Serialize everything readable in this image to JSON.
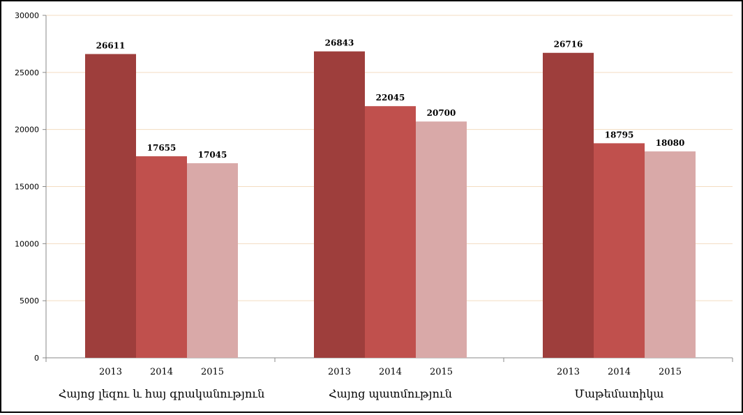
{
  "chart_data": {
    "type": "bar",
    "groups": [
      {
        "label": "Հայոց լեզու և հայ գրականություն",
        "bars": [
          {
            "year": "2013",
            "value": 26611,
            "color": "#9e3e3c"
          },
          {
            "year": "2014",
            "value": 17655,
            "color": "#c0504d"
          },
          {
            "year": "2015",
            "value": 17045,
            "color": "#d9a9a8"
          }
        ]
      },
      {
        "label": "Հայոց պատմություն",
        "bars": [
          {
            "year": "2013",
            "value": 26843,
            "color": "#9e3e3c"
          },
          {
            "year": "2014",
            "value": 22045,
            "color": "#c0504d"
          },
          {
            "year": "2015",
            "value": 20700,
            "color": "#d9a9a8"
          }
        ]
      },
      {
        "label": "Մաթեմատիկա",
        "bars": [
          {
            "year": "2013",
            "value": 26716,
            "color": "#9e3e3c"
          },
          {
            "year": "2014",
            "value": 18795,
            "color": "#c0504d"
          },
          {
            "year": "2015",
            "value": 18080,
            "color": "#d9a9a8"
          }
        ]
      }
    ],
    "y_ticks": [
      "0",
      "5000",
      "10000",
      "15000",
      "20000",
      "25000",
      "30000"
    ],
    "ylim": [
      0,
      30000
    ],
    "grid": true,
    "grid_color": "#f3dcc0",
    "axis_color": "#888888",
    "legend": "none"
  }
}
